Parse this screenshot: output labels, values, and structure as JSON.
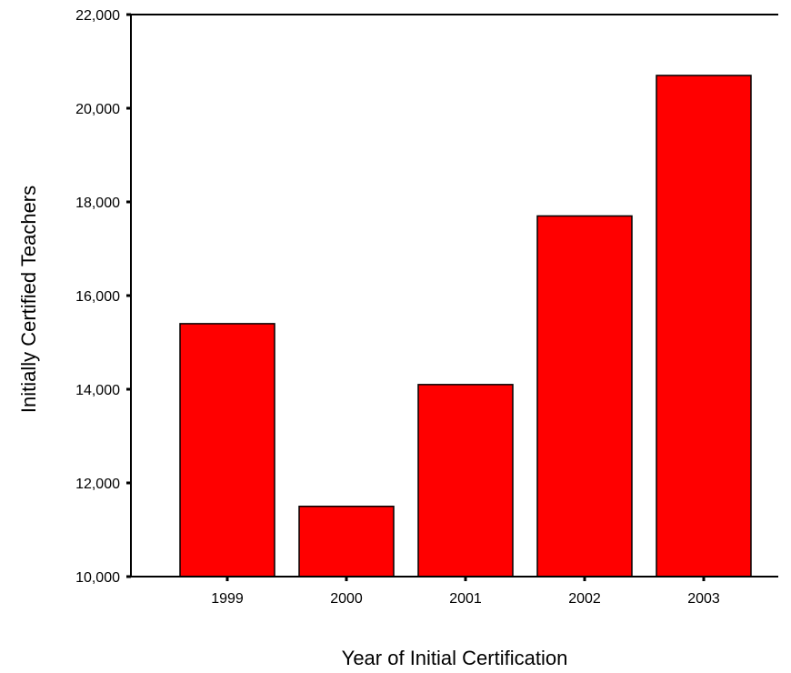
{
  "chart_data": {
    "type": "bar",
    "categories": [
      "1999",
      "2000",
      "2001",
      "2002",
      "2003"
    ],
    "values": [
      15400,
      11500,
      14100,
      17700,
      20700
    ],
    "xlabel": "Year of Initial Certification",
    "ylabel": "Initially Certified Teachers",
    "ylim": [
      10000,
      22000
    ],
    "yticks": [
      10000,
      12000,
      14000,
      16000,
      18000,
      20000,
      22000
    ],
    "ytick_labels": [
      "10,000",
      "12,000",
      "14,000",
      "16,000",
      "18,000",
      "20,000",
      "22,000"
    ],
    "grid": false,
    "legend": "none",
    "colors": {
      "bar_fill": "#ff0000",
      "bar_stroke": "#000000",
      "axis": "#000000"
    }
  }
}
